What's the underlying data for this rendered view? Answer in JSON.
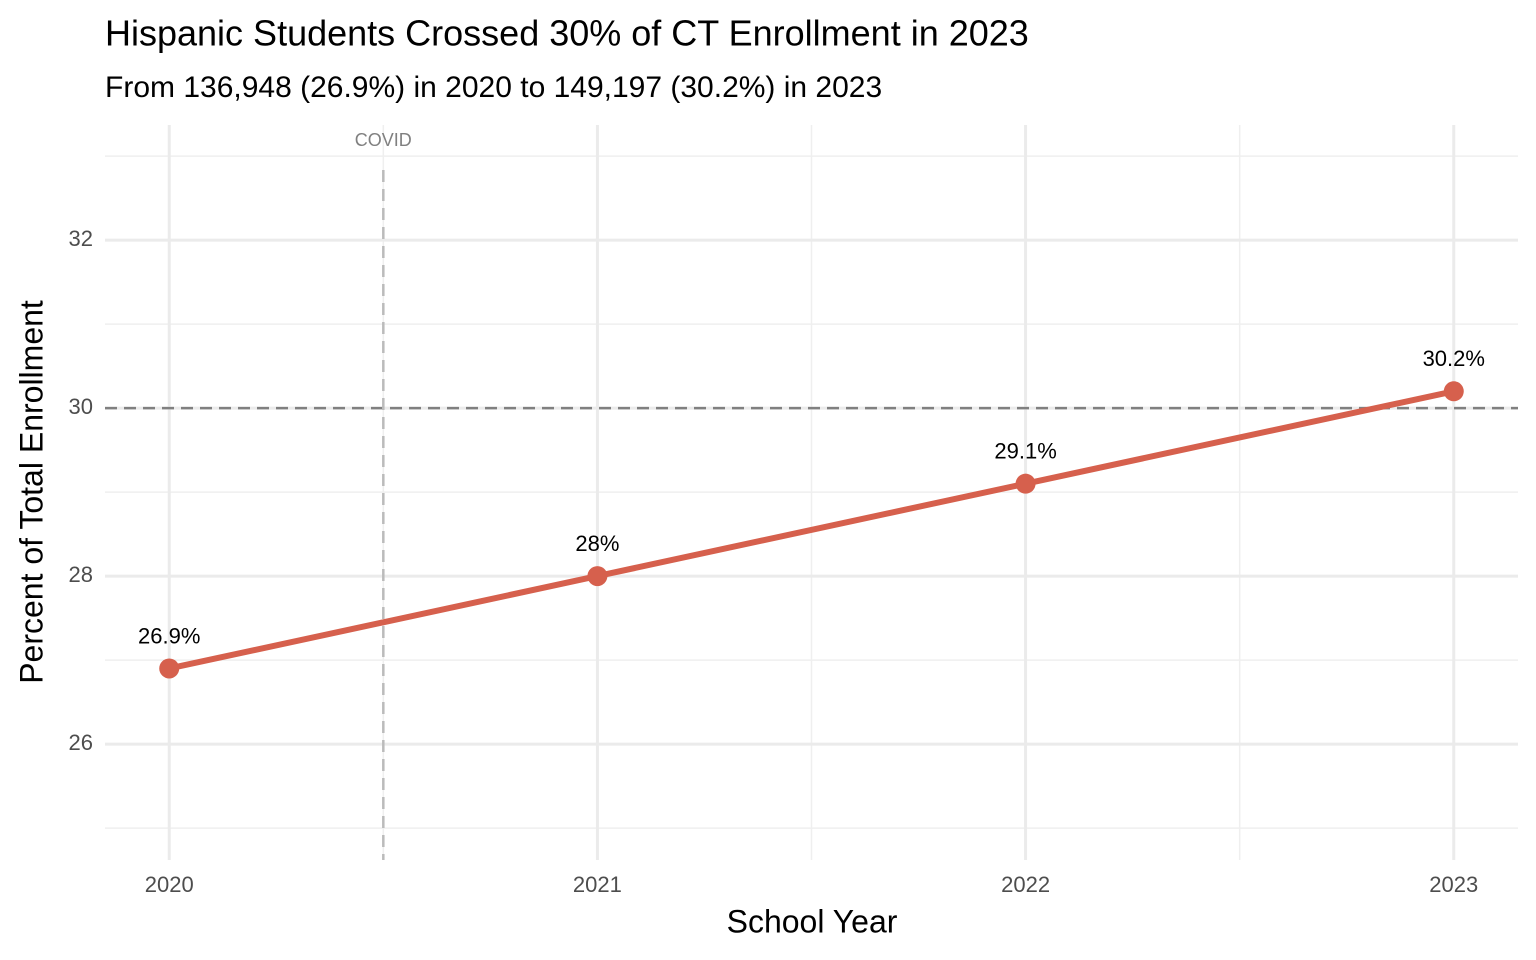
{
  "chart_data": {
    "type": "line",
    "title": "Hispanic Students Crossed 30% of CT Enrollment in 2023",
    "subtitle": "From 136,948 (26.9%) in 2020 to 149,197 (30.2%) in 2023",
    "x_label": "School Year",
    "y_label": "Percent of Total Enrollment",
    "x": [
      2020,
      2021,
      2022,
      2023
    ],
    "series": [
      {
        "name": "Hispanic",
        "color": "#d6604d",
        "values": [
          26.9,
          28,
          29.1,
          30.2
        ],
        "value_labels": [
          "26.9%",
          "28%",
          "29.1%",
          "30.2%"
        ]
      }
    ],
    "xlim": [
      2019.85,
      2023.15
    ],
    "xticks": [
      2020,
      2021,
      2022,
      2023
    ],
    "xminorticks": [
      2020.5,
      2021.5,
      2022.5
    ],
    "ylim": [
      24.62,
      33.37
    ],
    "yticks": [
      26,
      28,
      30,
      32
    ],
    "yminorticks": [
      25,
      27,
      29,
      31,
      33
    ],
    "grid": true,
    "hline": {
      "value": 30,
      "color": "#808080"
    },
    "vline": {
      "value": 2020.5,
      "label": "COVID",
      "color": "#bbbbbb"
    }
  }
}
